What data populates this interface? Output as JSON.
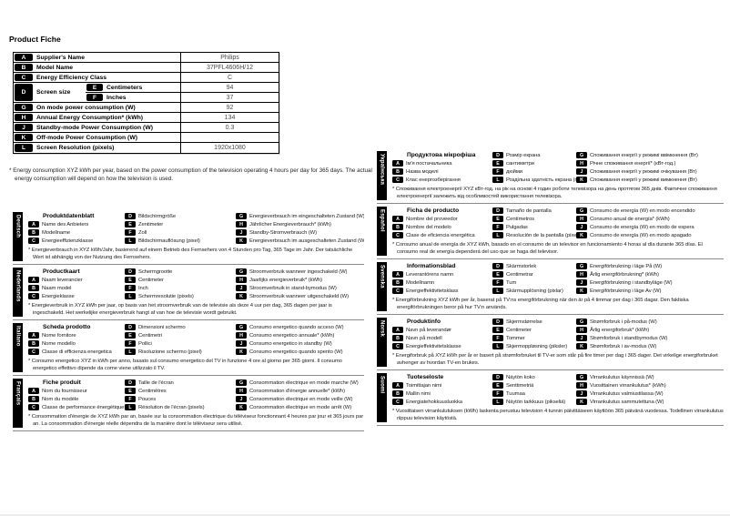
{
  "page": {
    "title": "Product Fiche"
  },
  "fiche": {
    "rows": [
      {
        "key": "A",
        "label": "Supplier's Name",
        "value": "Philips"
      },
      {
        "key": "B",
        "label": "Model Name",
        "value": "37PFL4606H/12"
      },
      {
        "key": "C",
        "label": "Energy Efficiency Class",
        "value": "C"
      },
      {
        "key": "G",
        "label": "On mode power consumption (W)",
        "value": "92"
      },
      {
        "key": "H",
        "label": "Annual Energy Consumption* (kWh)",
        "value": "134"
      },
      {
        "key": "J",
        "label": "Standby-mode Power Consumption (W)",
        "value": "0.3"
      },
      {
        "key": "K",
        "label": "Off-mode Power Consumption (W)",
        "value": ""
      },
      {
        "key": "L",
        "label": "Screen Resolution (pixels)",
        "value": "1920x1080"
      }
    ],
    "screen_size": {
      "key": "D",
      "label": "Screen size",
      "sub": [
        {
          "key": "E",
          "label": "Centimeters",
          "value": "94"
        },
        {
          "key": "F",
          "label": "Inches",
          "value": "37"
        }
      ]
    },
    "footnote": "* Energy consumption XYZ kWh per year, based on the power consumption of the television operating 4 hours per day for 365 days. The actual energy consumption will depend on how the television is used."
  },
  "sections_left": [
    {
      "language": "Deutsch",
      "title": "Produktdatenblatt",
      "col1": [
        {
          "key": "A",
          "label": "Name des Anbieters"
        },
        {
          "key": "B",
          "label": "Modellname"
        },
        {
          "key": "C",
          "label": "Energieeffizienzklasse"
        }
      ],
      "col2": [
        {
          "key": "D",
          "label": "Bildschirmgröße"
        },
        {
          "key": "E",
          "label": "Zentimeter"
        },
        {
          "key": "F",
          "label": "Zoll"
        },
        {
          "key": "L",
          "label": "Bildschirmauflösung (pixel)"
        }
      ],
      "col3": [
        {
          "key": "G",
          "label": "Energieverbrauch im eingeschalteten Zustand (W)"
        },
        {
          "key": "H",
          "label": "Jährlicher Energieverbrauch* (kWh)"
        },
        {
          "key": "J",
          "label": "Standby-Stromverbrauch (W)"
        },
        {
          "key": "K",
          "label": "Energieverbrauch im ausgeschalteten Zustand (W)"
        }
      ],
      "footnote": "* Energieverbrauch in XYZ kWh/Jahr, basierend auf einem Betrieb des Fernsehers von 4 Stunden pro Tag, 365 Tage im Jahr. Der tatsächliche Wert ist abhängig von der Nutzung des Fernsehers."
    },
    {
      "language": "Nederlands",
      "title": "Productkaart",
      "col1": [
        {
          "key": "A",
          "label": "Naam leverancier"
        },
        {
          "key": "B",
          "label": "Naam model"
        },
        {
          "key": "C",
          "label": "Energieklasse"
        }
      ],
      "col2": [
        {
          "key": "D",
          "label": "Schermgrootte"
        },
        {
          "key": "E",
          "label": "Centimeter"
        },
        {
          "key": "F",
          "label": "Inch"
        },
        {
          "key": "L",
          "label": "Schermresolutie (pixels)"
        }
      ],
      "col3": [
        {
          "key": "G",
          "label": "Stroomverbruik wanneer ingeschakeld (W)"
        },
        {
          "key": "H",
          "label": "Jaarlijks energieverbruik* (kWh)"
        },
        {
          "key": "J",
          "label": "Stroomverbruik in stand-bymodus (W)"
        },
        {
          "key": "K",
          "label": "Stroomverbruik wanneer uitgeschakeld (W)"
        }
      ],
      "footnote": "* Energieverbruik in XYZ kWh per jaar, op basis van het stroomverbruik van de televisie als deze 4 uur per dag, 365 dagen per jaar is ingeschakeld. Het werkelijke energieverbruik hangt af van hoe de televisie wordt gebruikt."
    },
    {
      "language": "Italiano",
      "title": "Scheda prodotto",
      "col1": [
        {
          "key": "A",
          "label": "Nome fornitore"
        },
        {
          "key": "B",
          "label": "Nome modello"
        },
        {
          "key": "C",
          "label": "Classe di efficienza energetica"
        }
      ],
      "col2": [
        {
          "key": "D",
          "label": "Dimensioni schermo"
        },
        {
          "key": "E",
          "label": "Centimetri"
        },
        {
          "key": "F",
          "label": "Pollici"
        },
        {
          "key": "L",
          "label": "Risoluzione schermo (pixel)"
        }
      ],
      "col3": [
        {
          "key": "G",
          "label": "Consumo energetico quando acceso (W)"
        },
        {
          "key": "H",
          "label": "Consumo energetico annuale* (kWh)"
        },
        {
          "key": "J",
          "label": "Consumo energetico in standby (W)"
        },
        {
          "key": "K",
          "label": "Consumo energetico quando spento (W)"
        }
      ],
      "footnote": "* Consumo energetico XYZ in kWh per anno, basato sul consumo energetico del TV in funzione 4 ore al giorno per 365 giorni. Il consumo energetico effettivo dipende da come viene utilizzato il TV."
    },
    {
      "language": "Français",
      "title": "Fiche produit",
      "col1": [
        {
          "key": "A",
          "label": "Nom du fournisseur"
        },
        {
          "key": "B",
          "label": "Nom du modèle"
        },
        {
          "key": "C",
          "label": "Classe de performance énergétique"
        }
      ],
      "col2": [
        {
          "key": "D",
          "label": "Taille de l'écran"
        },
        {
          "key": "E",
          "label": "Centimètres"
        },
        {
          "key": "F",
          "label": "Pouces"
        },
        {
          "key": "L",
          "label": "Résolution de l'écran (pixels)"
        }
      ],
      "col3": [
        {
          "key": "G",
          "label": "Consommation électrique en mode marche (W)"
        },
        {
          "key": "H",
          "label": "Consommation d'énergie annuelle* (kWh)"
        },
        {
          "key": "J",
          "label": "Consommation électrique en mode veille (W)"
        },
        {
          "key": "K",
          "label": "Consommation électrique en mode arrêt (W)"
        }
      ],
      "footnote": "* Consommation d'énergie de XYZ kWh par an, basée sur la consommation électrique du téléviseur fonctionnant 4 heures par jour et 365 jours par an. La consommation d'énergie réelle dépendra de la manière dont le téléviseur sera utilisé."
    }
  ],
  "sections_right": [
    {
      "language": "Українська",
      "title": "Продуктова мікрофіша",
      "col1": [
        {
          "key": "A",
          "label": "Ім'я постачальника"
        },
        {
          "key": "B",
          "label": "Назва моделі"
        },
        {
          "key": "C",
          "label": "Клас енергозберігання"
        }
      ],
      "col2": [
        {
          "key": "D",
          "label": "Розмір екрана"
        },
        {
          "key": "E",
          "label": "сантиметри"
        },
        {
          "key": "F",
          "label": "дюйми"
        },
        {
          "key": "L",
          "label": "Роздільна здатність екрана (пікселі)"
        }
      ],
      "col3": [
        {
          "key": "G",
          "label": "Споживання енергії у режимі ввімкнення (Вт)"
        },
        {
          "key": "H",
          "label": "Річне споживання енергії* (кВт-год.)"
        },
        {
          "key": "J",
          "label": "Споживання енергії у режимі очікування (Вт)"
        },
        {
          "key": "K",
          "label": "Споживання енергії у режимі вимкнення (Вт)"
        }
      ],
      "footnote": "* Споживання електроенергії XYZ кВт-год. на рік на основі 4 годин роботи телевізора на день протягом 365 днів. Фактичне споживання електроенергії залежить від особливостей використання телевізора."
    },
    {
      "language": "Español",
      "title": "Ficha de producto",
      "col1": [
        {
          "key": "A",
          "label": "Nombre del proveedor"
        },
        {
          "key": "B",
          "label": "Nombre del modelo"
        },
        {
          "key": "C",
          "label": "Clase de eficiencia energética"
        }
      ],
      "col2": [
        {
          "key": "D",
          "label": "Tamaño de pantalla"
        },
        {
          "key": "E",
          "label": "Centímetros"
        },
        {
          "key": "F",
          "label": "Pulgadas"
        },
        {
          "key": "L",
          "label": "Resolución de la pantalla (píxeles)"
        }
      ],
      "col3": [
        {
          "key": "G",
          "label": "Consumo de energía (W) en modo encendido"
        },
        {
          "key": "H",
          "label": "Consumo anual de energía* (kWh)"
        },
        {
          "key": "J",
          "label": "Consumo de energía (W) en modo de espera"
        },
        {
          "key": "K",
          "label": "Consumo de energía (W) en modo apagado"
        }
      ],
      "footnote": "* Consumo anual de energía de XYZ kWh, basado en el consumo de un televisor en funcionamiento 4 horas al día durante 365 días. El consumo real de energía dependerá del uso que se haga del televisor."
    },
    {
      "language": "Svenska",
      "title": "Informationsblad",
      "col1": [
        {
          "key": "A",
          "label": "Leverantörens namn"
        },
        {
          "key": "B",
          "label": "Modellnamn"
        },
        {
          "key": "C",
          "label": "Energieffektivitetsklass"
        }
      ],
      "col2": [
        {
          "key": "D",
          "label": "Skärmstorlek"
        },
        {
          "key": "E",
          "label": "Centimetrar"
        },
        {
          "key": "F",
          "label": "Tum"
        },
        {
          "key": "L",
          "label": "Skärmupplösning (pixlar)"
        }
      ],
      "col3": [
        {
          "key": "G",
          "label": "Energiförbrukning i läge På (W)"
        },
        {
          "key": "H",
          "label": "Årlig energiförbrukning* (kWh)"
        },
        {
          "key": "J",
          "label": "Energiförbrukning i standbyläge (W)"
        },
        {
          "key": "K",
          "label": "Energiförbrukning i läge Av (W)"
        }
      ],
      "footnote": "* Energiförbrukning XYZ kWh per år, baserat på TV:ns energiförbrukning när den är på 4 timmar per dag i 365 dagar. Den faktiska energiförbrukningen beror på hur TV:n används."
    },
    {
      "language": "Norsk",
      "title": "Produktinfo",
      "col1": [
        {
          "key": "A",
          "label": "Navn på leverandør"
        },
        {
          "key": "B",
          "label": "Navn på modell"
        },
        {
          "key": "C",
          "label": "Energieffektivitetsklasse"
        }
      ],
      "col2": [
        {
          "key": "D",
          "label": "Skjermstørrelse"
        },
        {
          "key": "E",
          "label": "Centimeter"
        },
        {
          "key": "F",
          "label": "Tommer"
        },
        {
          "key": "L",
          "label": "Skjermoppløsning (piksler)"
        }
      ],
      "col3": [
        {
          "key": "G",
          "label": "Strømforbruk i på-modus (W)"
        },
        {
          "key": "H",
          "label": "Årlig energiforbruk* (kWh)"
        },
        {
          "key": "J",
          "label": "Strømforbruk i standbymodus (W)"
        },
        {
          "key": "K",
          "label": "Strømforbruk i av-modus (W)"
        }
      ],
      "footnote": "* Energiforbruk på XYZ kWh per år er basert på strømforbruket til TV-er som står på fire timer per dag i 365 dager. Det virkelige energiforbruket avhenger av hvordan TV-en brukes."
    },
    {
      "language": "Suomi",
      "title": "Tuoteseloste",
      "col1": [
        {
          "key": "A",
          "label": "Toimittajan nimi"
        },
        {
          "key": "B",
          "label": "Mallin nimi"
        },
        {
          "key": "C",
          "label": "Energiatehokkuusluokka"
        }
      ],
      "col2": [
        {
          "key": "D",
          "label": "Näytön koko"
        },
        {
          "key": "E",
          "label": "Senttimetriä"
        },
        {
          "key": "F",
          "label": "Tuumaa"
        },
        {
          "key": "L",
          "label": "Näytön tarkkuus (pikseliä)"
        }
      ],
      "col3": [
        {
          "key": "G",
          "label": "Virrankulutus käynnissä (W)"
        },
        {
          "key": "H",
          "label": "Vuosittainen virrankulutus* (kWh)"
        },
        {
          "key": "J",
          "label": "Virrankulutus valmiustilassa (W)"
        },
        {
          "key": "K",
          "label": "Virrankulutus sammutettuna (W)"
        }
      ],
      "footnote": "* Vuosittaisen virrankulutuksen (kWh) laskenta perustuu television 4 tunnin päivittäiseen käyttöön 365 päivänä vuodessa. Todellinen virrankulutus riippuu television käytöstä."
    }
  ]
}
